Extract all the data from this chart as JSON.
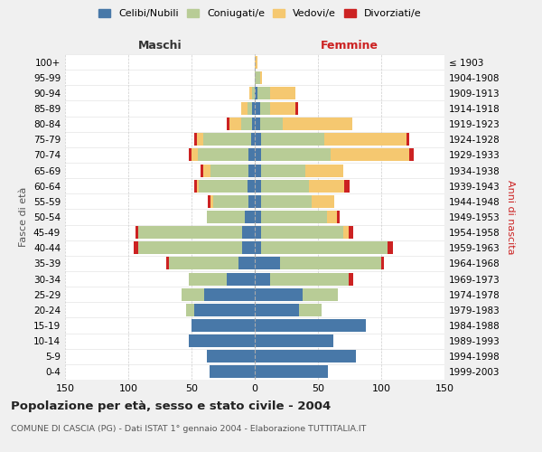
{
  "age_groups": [
    "0-4",
    "5-9",
    "10-14",
    "15-19",
    "20-24",
    "25-29",
    "30-34",
    "35-39",
    "40-44",
    "45-49",
    "50-54",
    "55-59",
    "60-64",
    "65-69",
    "70-74",
    "75-79",
    "80-84",
    "85-89",
    "90-94",
    "95-99",
    "100+"
  ],
  "birth_years": [
    "1999-2003",
    "1994-1998",
    "1989-1993",
    "1984-1988",
    "1979-1983",
    "1974-1978",
    "1969-1973",
    "1964-1968",
    "1959-1963",
    "1954-1958",
    "1949-1953",
    "1944-1948",
    "1939-1943",
    "1934-1938",
    "1929-1933",
    "1924-1928",
    "1919-1923",
    "1914-1918",
    "1909-1913",
    "1904-1908",
    "≤ 1903"
  ],
  "colors": {
    "celibi": "#4878a8",
    "coniugati": "#b8cc96",
    "vedovi": "#f5c870",
    "divorziati": "#cc2222"
  },
  "maschi": {
    "celibi": [
      36,
      38,
      52,
      50,
      48,
      40,
      22,
      13,
      10,
      10,
      8,
      5,
      6,
      5,
      5,
      3,
      2,
      2,
      0,
      0,
      0
    ],
    "coniugati": [
      0,
      0,
      0,
      0,
      6,
      18,
      30,
      55,
      82,
      82,
      30,
      28,
      38,
      30,
      40,
      38,
      9,
      4,
      2,
      0,
      0
    ],
    "vedovi": [
      0,
      0,
      0,
      0,
      0,
      0,
      0,
      0,
      0,
      0,
      0,
      2,
      2,
      6,
      5,
      5,
      9,
      5,
      2,
      0,
      0
    ],
    "divorziati": [
      0,
      0,
      0,
      0,
      0,
      0,
      0,
      2,
      4,
      2,
      0,
      2,
      2,
      2,
      2,
      2,
      2,
      0,
      0,
      0,
      0
    ]
  },
  "femmine": {
    "celibi": [
      58,
      80,
      62,
      88,
      35,
      38,
      12,
      20,
      5,
      5,
      5,
      5,
      5,
      5,
      5,
      5,
      4,
      4,
      2,
      0,
      0
    ],
    "coniugati": [
      0,
      0,
      0,
      0,
      18,
      28,
      62,
      80,
      100,
      65,
      52,
      40,
      38,
      35,
      55,
      50,
      18,
      8,
      10,
      4,
      0
    ],
    "vedovi": [
      0,
      0,
      0,
      0,
      0,
      0,
      0,
      0,
      0,
      4,
      8,
      18,
      28,
      30,
      62,
      65,
      55,
      20,
      20,
      2,
      2
    ],
    "divorziati": [
      0,
      0,
      0,
      0,
      0,
      0,
      4,
      2,
      4,
      4,
      2,
      0,
      4,
      0,
      4,
      2,
      0,
      2,
      0,
      0,
      0
    ]
  },
  "xlim": 150,
  "title": "Popolazione per età, sesso e stato civile - 2004",
  "subtitle": "COMUNE DI CASCIA (PG) - Dati ISTAT 1° gennaio 2004 - Elaborazione TUTTITALIA.IT",
  "ylabel_left": "Fasce di età",
  "ylabel_right": "Anni di nascita",
  "xlabel_maschi": "Maschi",
  "xlabel_femmine": "Femmine",
  "legend_labels": [
    "Celibi/Nubili",
    "Coniugati/e",
    "Vedovi/e",
    "Divorziati/e"
  ],
  "bg_color": "#f0f0f0",
  "plot_bg": "#ffffff"
}
